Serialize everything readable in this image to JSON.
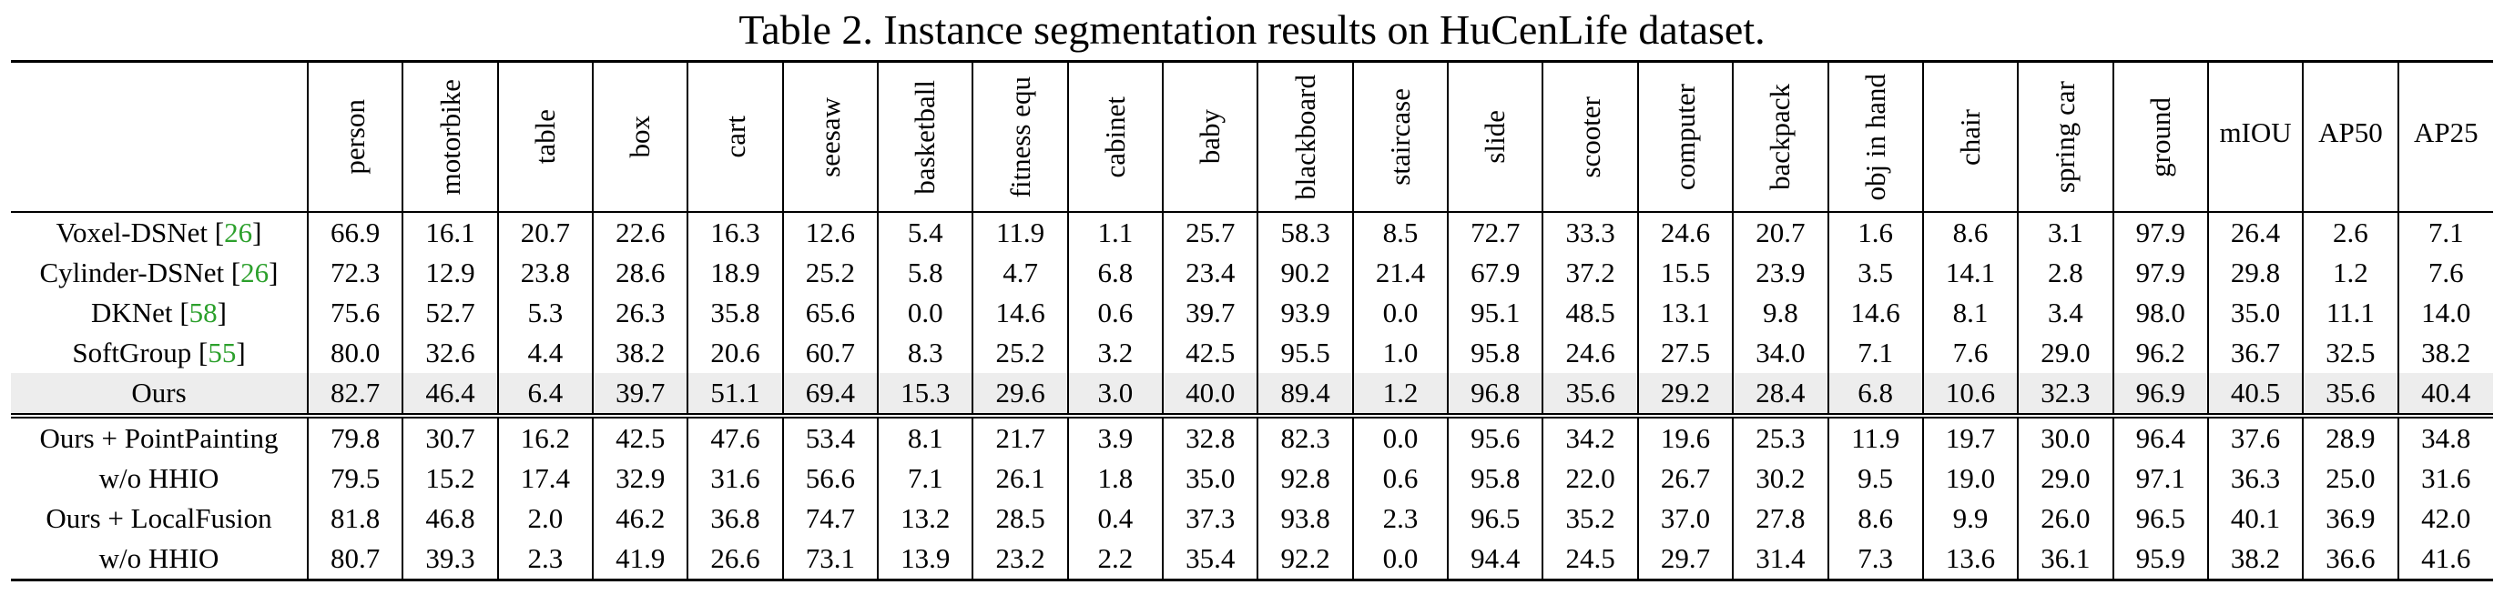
{
  "caption": "Table 2. Instance segmentation results on HuCenLife dataset.",
  "columns": [
    "person",
    "motorbike",
    "table",
    "box",
    "cart",
    "seesaw",
    "basketball",
    "fitness equ",
    "cabinet",
    "baby",
    "blackboard",
    "staircase",
    "slide",
    "scooter",
    "computer",
    "backpack",
    "obj in hand",
    "chair",
    "spring car",
    "ground",
    "mIOU",
    "AP50",
    "AP25"
  ],
  "rows": [
    {
      "method": "Voxel-DSNet",
      "ref": "26",
      "values": [
        "66.9",
        "16.1",
        "20.7",
        "22.6",
        "16.3",
        "12.6",
        "5.4",
        "11.9",
        "1.1",
        "25.7",
        "58.3",
        "8.5",
        "72.7",
        "33.3",
        "24.6",
        "20.7",
        "1.6",
        "8.6",
        "3.1",
        "97.9",
        "26.4",
        "2.6",
        "7.1"
      ]
    },
    {
      "method": "Cylinder-DSNet",
      "ref": "26",
      "values": [
        "72.3",
        "12.9",
        "23.8",
        "28.6",
        "18.9",
        "25.2",
        "5.8",
        "4.7",
        "6.8",
        "23.4",
        "90.2",
        "21.4",
        "67.9",
        "37.2",
        "15.5",
        "23.9",
        "3.5",
        "14.1",
        "2.8",
        "97.9",
        "29.8",
        "1.2",
        "7.6"
      ]
    },
    {
      "method": "DKNet",
      "ref": "58",
      "values": [
        "75.6",
        "52.7",
        "5.3",
        "26.3",
        "35.8",
        "65.6",
        "0.0",
        "14.6",
        "0.6",
        "39.7",
        "93.9",
        "0.0",
        "95.1",
        "48.5",
        "13.1",
        "9.8",
        "14.6",
        "8.1",
        "3.4",
        "98.0",
        "35.0",
        "11.1",
        "14.0"
      ]
    },
    {
      "method": "SoftGroup",
      "ref": "55",
      "values": [
        "80.0",
        "32.6",
        "4.4",
        "38.2",
        "20.6",
        "60.7",
        "8.3",
        "25.2",
        "3.2",
        "42.5",
        "95.5",
        "1.0",
        "95.8",
        "24.6",
        "27.5",
        "34.0",
        "7.1",
        "7.6",
        "29.0",
        "96.2",
        "36.7",
        "32.5",
        "38.2"
      ]
    },
    {
      "method": "Ours",
      "ref": "",
      "highlight": true,
      "bold_cols": [
        20,
        21,
        22
      ],
      "values": [
        "82.7",
        "46.4",
        "6.4",
        "39.7",
        "51.1",
        "69.4",
        "15.3",
        "29.6",
        "3.0",
        "40.0",
        "89.4",
        "1.2",
        "96.8",
        "35.6",
        "29.2",
        "28.4",
        "6.8",
        "10.6",
        "32.3",
        "96.9",
        "40.5",
        "35.6",
        "40.4"
      ]
    },
    {
      "method": "Ours + PointPainting",
      "ref": "",
      "values": [
        "79.8",
        "30.7",
        "16.2",
        "42.5",
        "47.6",
        "53.4",
        "8.1",
        "21.7",
        "3.9",
        "32.8",
        "82.3",
        "0.0",
        "95.6",
        "34.2",
        "19.6",
        "25.3",
        "11.9",
        "19.7",
        "30.0",
        "96.4",
        "37.6",
        "28.9",
        "34.8"
      ]
    },
    {
      "method": "w/o HHIO",
      "ref": "",
      "values": [
        "79.5",
        "15.2",
        "17.4",
        "32.9",
        "31.6",
        "56.6",
        "7.1",
        "26.1",
        "1.8",
        "35.0",
        "92.8",
        "0.6",
        "95.8",
        "22.0",
        "26.7",
        "30.2",
        "9.5",
        "19.0",
        "29.0",
        "97.1",
        "36.3",
        "25.0",
        "31.6"
      ]
    },
    {
      "method": "Ours + LocalFusion",
      "ref": "",
      "values": [
        "81.8",
        "46.8",
        "2.0",
        "46.2",
        "36.8",
        "74.7",
        "13.2",
        "28.5",
        "0.4",
        "37.3",
        "93.8",
        "2.3",
        "96.5",
        "35.2",
        "37.0",
        "27.8",
        "8.6",
        "9.9",
        "26.0",
        "96.5",
        "40.1",
        "36.9",
        "42.0"
      ]
    },
    {
      "method": "w/o HHIO",
      "ref": "",
      "values": [
        "80.7",
        "39.3",
        "2.3",
        "41.9",
        "26.6",
        "73.1",
        "13.9",
        "23.2",
        "2.2",
        "35.4",
        "92.2",
        "0.0",
        "94.4",
        "24.5",
        "29.7",
        "31.4",
        "7.3",
        "13.6",
        "36.1",
        "95.9",
        "38.2",
        "36.6",
        "41.6"
      ]
    }
  ]
}
